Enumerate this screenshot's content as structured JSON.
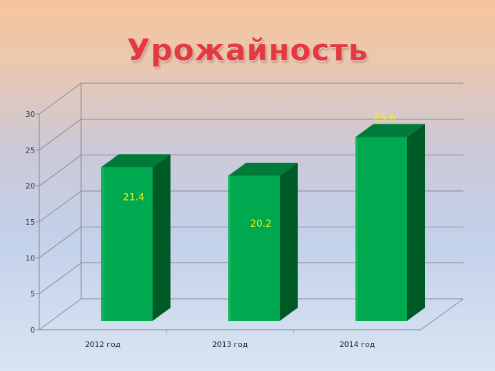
{
  "slide": {
    "title": "Урожайность"
  },
  "chart_data": {
    "type": "bar",
    "title": "Урожайность",
    "categories": [
      "2012 год",
      "2013 год",
      "2014 год"
    ],
    "values": [
      21.4,
      20.2,
      25.6
    ],
    "ylim": [
      0,
      30
    ],
    "yticks": [
      0,
      5,
      10,
      15,
      20,
      25,
      30
    ],
    "xlabel": "",
    "ylabel": "",
    "grid": true,
    "legend": "none",
    "colors": {
      "bar_front": "#00a84f",
      "bar_side": "#005a25",
      "bar_top": "#007a38",
      "data_label": "#f6f20a",
      "gridline": "#888888"
    }
  }
}
